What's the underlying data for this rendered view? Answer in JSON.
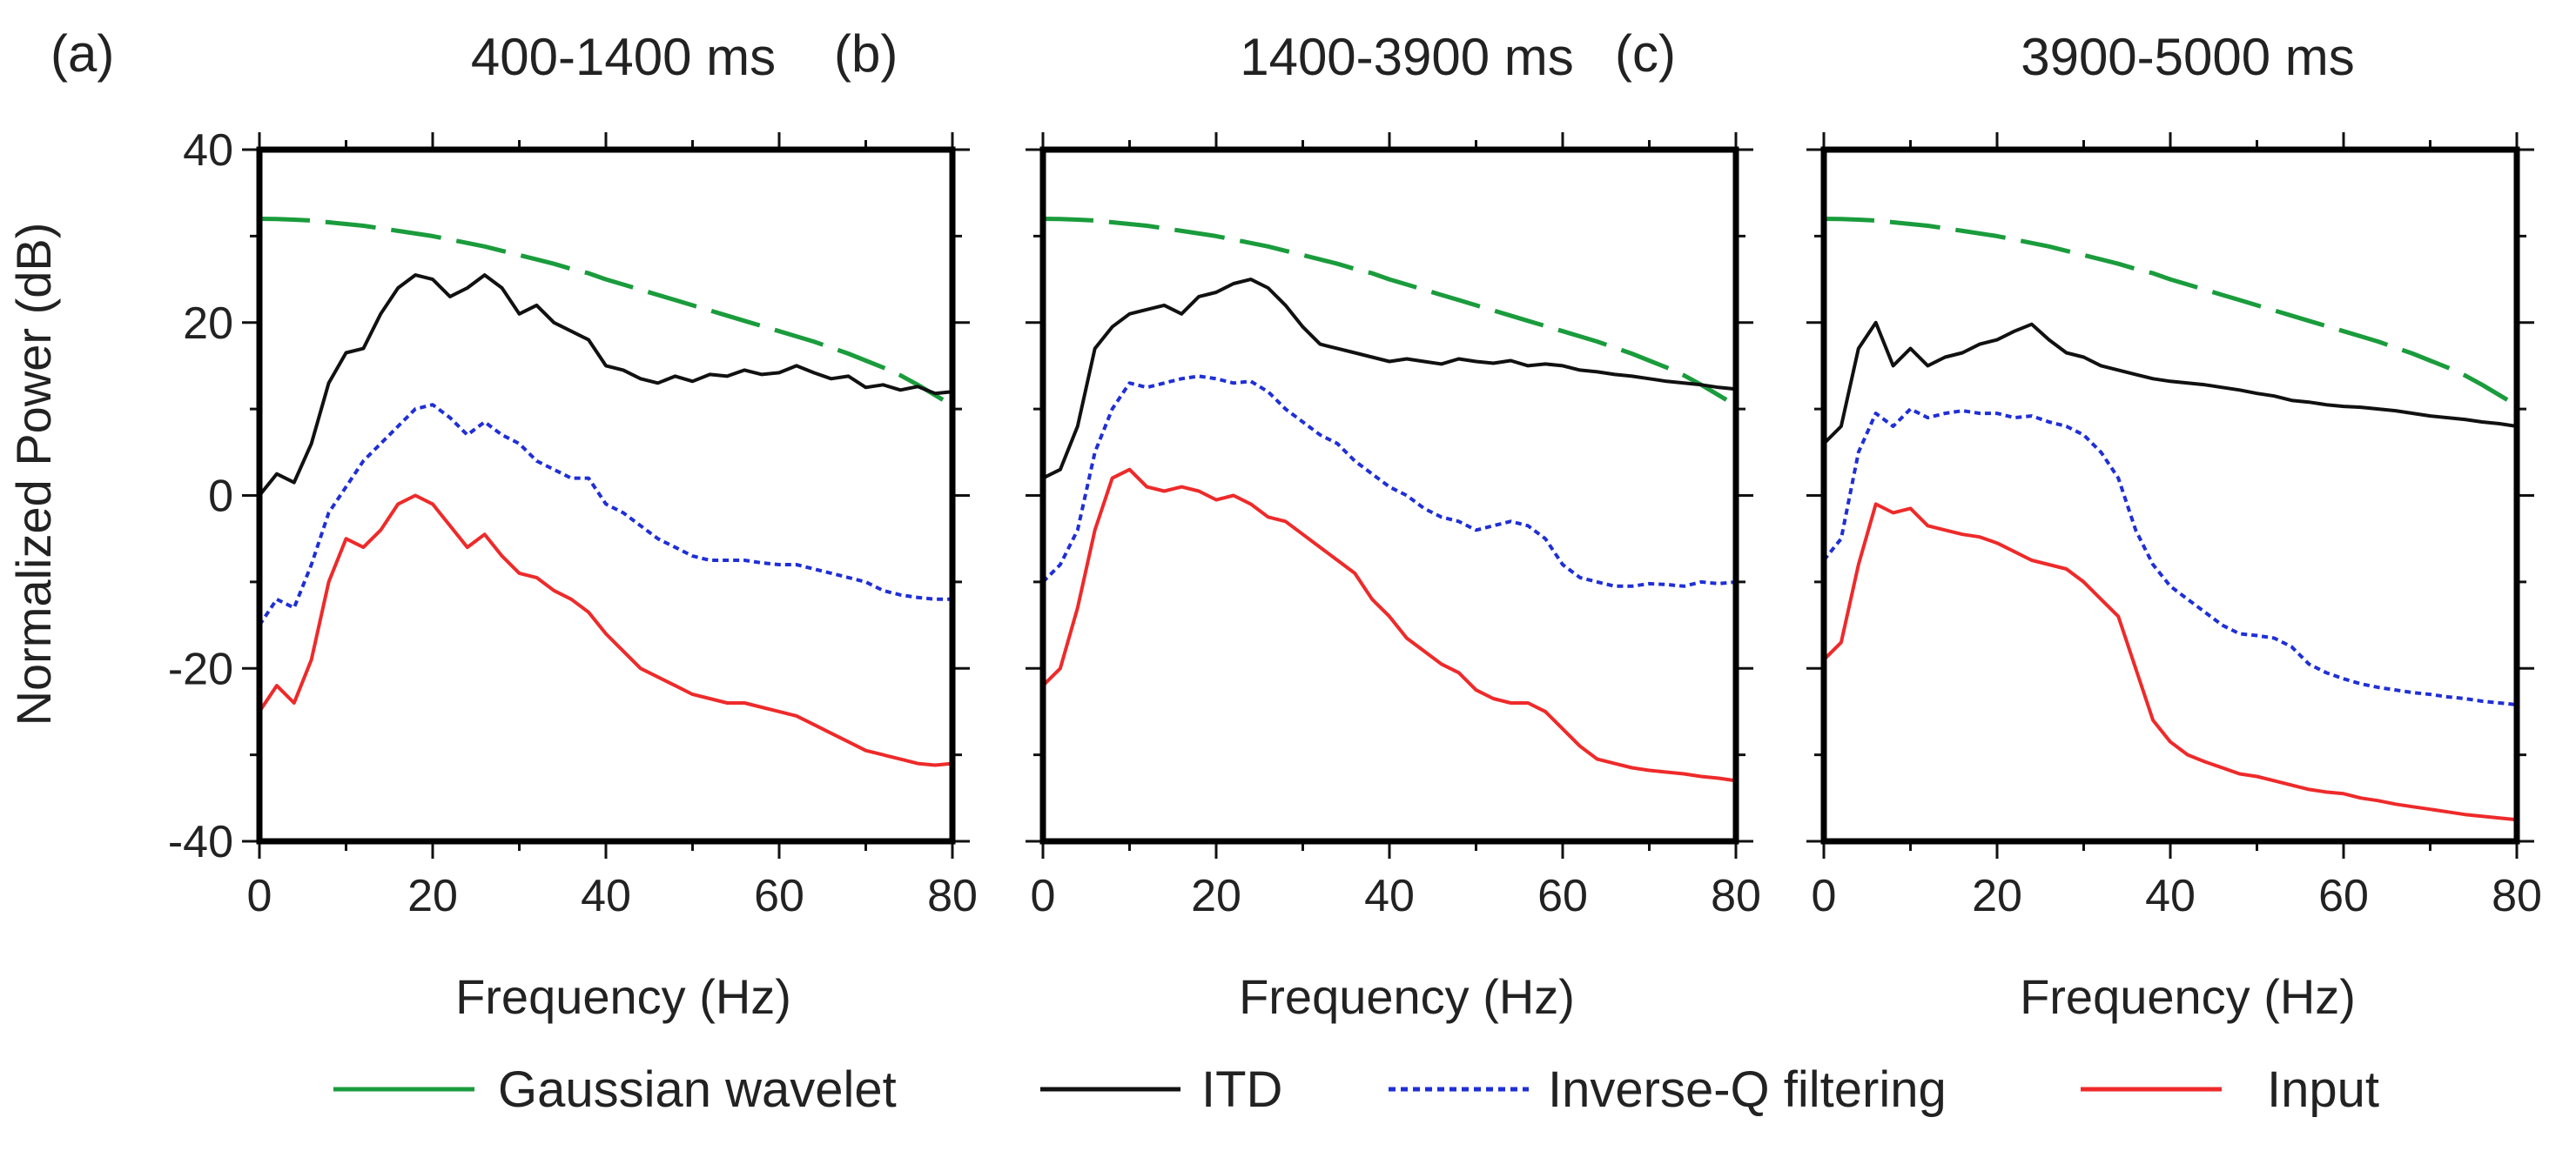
{
  "chart_data": {
    "type": "line",
    "x_label": "Frequency (Hz)",
    "y_label": "Normalized Power (dB)",
    "xlim": [
      0,
      80
    ],
    "ylim": [
      -40,
      40
    ],
    "x_ticks": [
      "0",
      "20",
      "40",
      "60",
      "80"
    ],
    "y_ticks": [
      "40",
      "20",
      "0",
      "-20",
      "-40"
    ],
    "legend_position": "bottom",
    "legend": [
      {
        "name": "Gaussian wavelet",
        "color": "#1a9c3c",
        "style": "long-dash"
      },
      {
        "name": "ITD",
        "color": "#111111",
        "style": "solid"
      },
      {
        "name": "Inverse-Q filtering",
        "color": "#1f2fd6",
        "style": "dotted"
      },
      {
        "name": "Input",
        "color": "#ee2a2a",
        "style": "solid"
      }
    ],
    "panels": [
      {
        "label": "(a)",
        "title": "400-1400 ms",
        "x": [
          0,
          2,
          4,
          6,
          8,
          10,
          12,
          14,
          16,
          18,
          20,
          22,
          24,
          26,
          28,
          30,
          32,
          34,
          36,
          38,
          40,
          42,
          44,
          46,
          48,
          50,
          52,
          54,
          56,
          58,
          60,
          62,
          64,
          66,
          68,
          70,
          72,
          74,
          76,
          78,
          80
        ],
        "series": [
          {
            "name": "Gaussian wavelet",
            "values": [
              32,
              31.98,
              31.9,
              31.8,
              31.6,
              31.4,
              31.2,
              30.9,
              30.6,
              30.3,
              30,
              29.6,
              29.2,
              28.8,
              28.3,
              27.8,
              27.3,
              26.8,
              26.2,
              25.7,
              25,
              24.4,
              23.8,
              23.2,
              22.6,
              22,
              21.4,
              20.8,
              20.2,
              19.6,
              19,
              18.4,
              17.8,
              17.1,
              16.4,
              15.6,
              14.8,
              13.9,
              12.8,
              11.6,
              10.4
            ]
          },
          {
            "name": "ITD",
            "values": [
              0,
              2.5,
              1.5,
              6,
              13,
              16.5,
              17,
              21,
              24,
              25.5,
              25,
              23,
              24,
              25.5,
              24,
              21,
              22,
              20,
              19,
              18,
              15,
              14.5,
              13.5,
              13,
              13.8,
              13.2,
              14,
              13.8,
              14.5,
              14,
              14.2,
              15,
              14.2,
              13.5,
              13.8,
              12.5,
              12.8,
              12.2,
              12.6,
              11.8,
              12
            ]
          },
          {
            "name": "Inverse-Q filtering",
            "values": [
              -15,
              -12,
              -13,
              -8,
              -2,
              1,
              4,
              6,
              8,
              10,
              10.5,
              9,
              7,
              8.5,
              7,
              6,
              4,
              3,
              2,
              2,
              -1,
              -2,
              -3.5,
              -5,
              -6,
              -7,
              -7.5,
              -7.5,
              -7.5,
              -7.8,
              -8,
              -8,
              -8.5,
              -9,
              -9.5,
              -10,
              -11,
              -11.5,
              -11.8,
              -12,
              -12
            ]
          },
          {
            "name": "Input",
            "values": [
              -25,
              -22,
              -24,
              -19,
              -10,
              -5,
              -6,
              -4,
              -1,
              0,
              -1,
              -3.5,
              -6,
              -4.5,
              -7,
              -9,
              -9.5,
              -11,
              -12,
              -13.5,
              -16,
              -18,
              -20,
              -21,
              -22,
              -23,
              -23.5,
              -24,
              -24,
              -24.5,
              -25,
              -25.5,
              -26.5,
              -27.5,
              -28.5,
              -29.5,
              -30,
              -30.5,
              -31,
              -31.2,
              -31
            ]
          }
        ]
      },
      {
        "label": "(b)",
        "title": "1400-3900 ms",
        "x": [
          0,
          2,
          4,
          6,
          8,
          10,
          12,
          14,
          16,
          18,
          20,
          22,
          24,
          26,
          28,
          30,
          32,
          34,
          36,
          38,
          40,
          42,
          44,
          46,
          48,
          50,
          52,
          54,
          56,
          58,
          60,
          62,
          64,
          66,
          68,
          70,
          72,
          74,
          76,
          78,
          80
        ],
        "series": [
          {
            "name": "Gaussian wavelet",
            "values": [
              32,
              31.98,
              31.9,
              31.8,
              31.6,
              31.4,
              31.2,
              30.9,
              30.6,
              30.3,
              30,
              29.6,
              29.2,
              28.8,
              28.3,
              27.8,
              27.3,
              26.8,
              26.2,
              25.7,
              25,
              24.4,
              23.8,
              23.2,
              22.6,
              22,
              21.4,
              20.8,
              20.2,
              19.6,
              19,
              18.4,
              17.8,
              17.1,
              16.4,
              15.6,
              14.8,
              13.9,
              12.8,
              11.6,
              10.4
            ]
          },
          {
            "name": "ITD",
            "values": [
              2,
              3,
              8,
              17,
              19.5,
              21,
              21.5,
              22,
              21,
              23,
              23.5,
              24.5,
              25,
              24,
              22,
              19.5,
              17.5,
              17,
              16.5,
              16,
              15.5,
              15.8,
              15.5,
              15.2,
              15.8,
              15.5,
              15.3,
              15.6,
              15,
              15.2,
              15,
              14.5,
              14.3,
              14,
              13.8,
              13.5,
              13.2,
              13,
              12.8,
              12.5,
              12.3
            ]
          },
          {
            "name": "Inverse-Q filtering",
            "values": [
              -10,
              -8,
              -4,
              5,
              10,
              13,
              12.5,
              13,
              13.5,
              13.8,
              13.5,
              13,
              13.2,
              12,
              10,
              8.5,
              7,
              6,
              4,
              2.5,
              1,
              0,
              -1.5,
              -2.5,
              -3,
              -4,
              -3.5,
              -3,
              -3.5,
              -5,
              -8,
              -9.5,
              -10,
              -10.5,
              -10.5,
              -10.2,
              -10.3,
              -10.5,
              -10,
              -10.2,
              -10
            ]
          },
          {
            "name": "Input",
            "values": [
              -22,
              -20,
              -13,
              -4,
              2,
              3,
              1,
              0.5,
              1,
              0.5,
              -0.5,
              0,
              -1,
              -2.5,
              -3,
              -4.5,
              -6,
              -7.5,
              -9,
              -12,
              -14,
              -16.5,
              -18,
              -19.5,
              -20.5,
              -22.5,
              -23.5,
              -24,
              -24,
              -25,
              -27,
              -29,
              -30.5,
              -31,
              -31.5,
              -31.8,
              -32,
              -32.2,
              -32.5,
              -32.7,
              -33
            ]
          }
        ]
      },
      {
        "label": "(c)",
        "title": "3900-5000 ms",
        "x": [
          0,
          2,
          4,
          6,
          8,
          10,
          12,
          14,
          16,
          18,
          20,
          22,
          24,
          26,
          28,
          30,
          32,
          34,
          36,
          38,
          40,
          42,
          44,
          46,
          48,
          50,
          52,
          54,
          56,
          58,
          60,
          62,
          64,
          66,
          68,
          70,
          72,
          74,
          76,
          78,
          80
        ],
        "series": [
          {
            "name": "Gaussian wavelet",
            "values": [
              32,
              31.98,
              31.9,
              31.8,
              31.6,
              31.4,
              31.2,
              30.9,
              30.6,
              30.3,
              30,
              29.6,
              29.2,
              28.8,
              28.3,
              27.8,
              27.3,
              26.8,
              26.2,
              25.7,
              25,
              24.4,
              23.8,
              23.2,
              22.6,
              22,
              21.4,
              20.8,
              20.2,
              19.6,
              19,
              18.4,
              17.8,
              17.1,
              16.4,
              15.6,
              14.8,
              13.9,
              12.8,
              11.6,
              10.4
            ]
          },
          {
            "name": "ITD",
            "values": [
              6,
              8,
              17,
              20,
              15,
              17,
              15,
              16,
              16.5,
              17.5,
              18,
              19,
              19.8,
              18,
              16.5,
              16,
              15,
              14.5,
              14,
              13.5,
              13.2,
              13,
              12.8,
              12.5,
              12.2,
              11.8,
              11.5,
              11,
              10.8,
              10.5,
              10.3,
              10.2,
              10,
              9.8,
              9.5,
              9.2,
              9,
              8.8,
              8.5,
              8.3,
              8
            ]
          },
          {
            "name": "Inverse-Q filtering",
            "values": [
              -7.5,
              -5,
              5,
              9.5,
              8,
              10,
              9,
              9.5,
              9.8,
              9.5,
              9.5,
              9,
              9.2,
              8.5,
              8,
              7,
              5,
              2,
              -4,
              -8,
              -10.5,
              -12,
              -13.5,
              -15,
              -16,
              -16.2,
              -16.5,
              -17.5,
              -19.5,
              -20.5,
              -21.2,
              -21.8,
              -22.2,
              -22.5,
              -22.8,
              -23,
              -23.3,
              -23.5,
              -23.8,
              -24,
              -24.2
            ]
          },
          {
            "name": "Input",
            "values": [
              -19,
              -17,
              -8,
              -1,
              -2,
              -1.5,
              -3.5,
              -4,
              -4.5,
              -4.8,
              -5.5,
              -6.5,
              -7.5,
              -8,
              -8.5,
              -10,
              -12,
              -14,
              -20,
              -26,
              -28.5,
              -30,
              -30.8,
              -31.5,
              -32.2,
              -32.5,
              -33,
              -33.5,
              -34,
              -34.3,
              -34.5,
              -35,
              -35.3,
              -35.7,
              -36,
              -36.3,
              -36.6,
              -36.9,
              -37.1,
              -37.3,
              -37.5
            ]
          }
        ]
      }
    ]
  }
}
